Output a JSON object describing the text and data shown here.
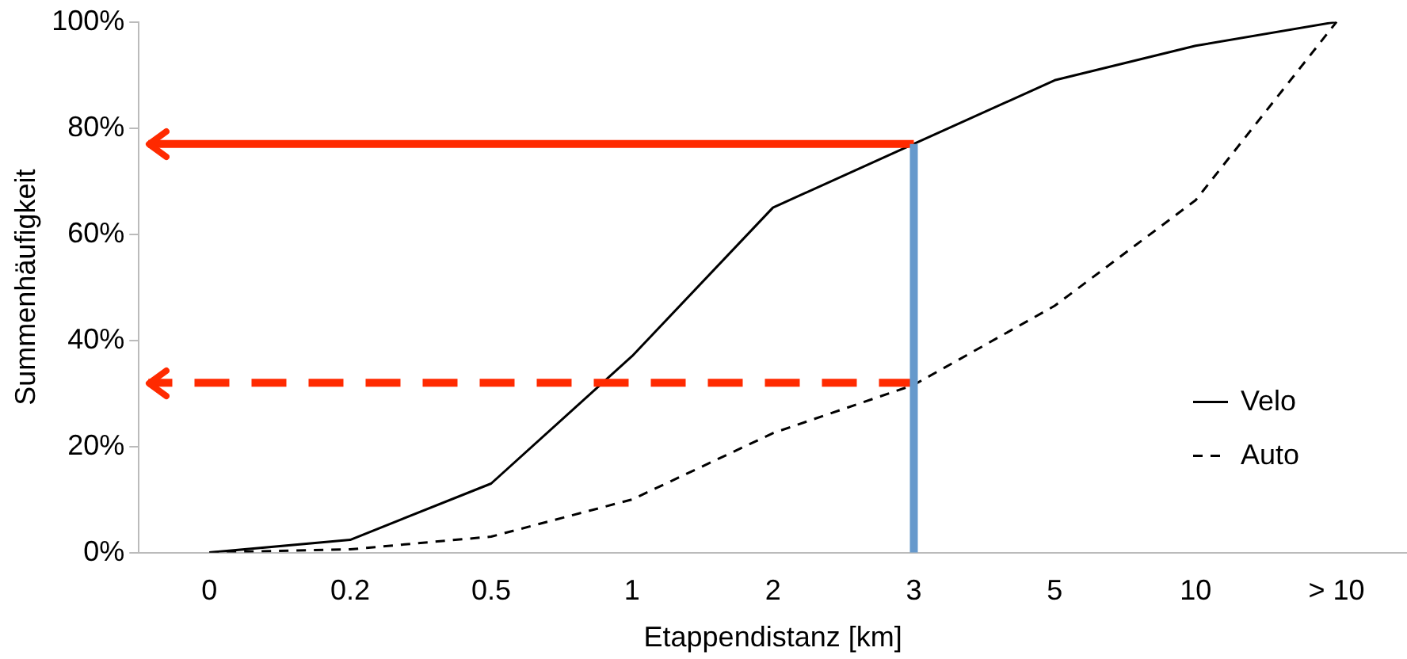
{
  "chart_data": {
    "type": "line",
    "xlabel": "Etappendistanz [km]",
    "ylabel": "Summenhäufigkeit",
    "categories": [
      "0",
      "0.2",
      "0.5",
      "1",
      "2",
      "3",
      "5",
      "10",
      "> 10"
    ],
    "series": [
      {
        "name": "Velo",
        "color": "#000000",
        "line_style": "solid",
        "values": [
          0,
          2.4,
          13,
          37,
          65,
          77,
          89,
          95.5,
          100
        ]
      },
      {
        "name": "Auto",
        "color": "#000000",
        "line_style": "dashed",
        "values": [
          0,
          0.6,
          3,
          10,
          22.5,
          31.6,
          46.5,
          66.4,
          100
        ]
      }
    ],
    "ylim": [
      0,
      100
    ],
    "yticks": [
      {
        "value": 0,
        "label": "0%"
      },
      {
        "value": 20,
        "label": "20%"
      },
      {
        "value": 40,
        "label": "40%"
      },
      {
        "value": 60,
        "label": "60%"
      },
      {
        "value": 80,
        "label": "80%"
      },
      {
        "value": 100,
        "label": "100%"
      }
    ],
    "ref_lines": [
      {
        "axis": "y",
        "value": 77,
        "color": "#ff2a00",
        "line_style": "solid"
      },
      {
        "axis": "y",
        "value": 32,
        "color": "#ff2a00",
        "line_style": "dashed"
      },
      {
        "axis": "x",
        "value": "3",
        "color": "#6699cc",
        "line_style": "solid"
      }
    ],
    "grid": false,
    "legend": "bottom right",
    "marker": "none"
  }
}
